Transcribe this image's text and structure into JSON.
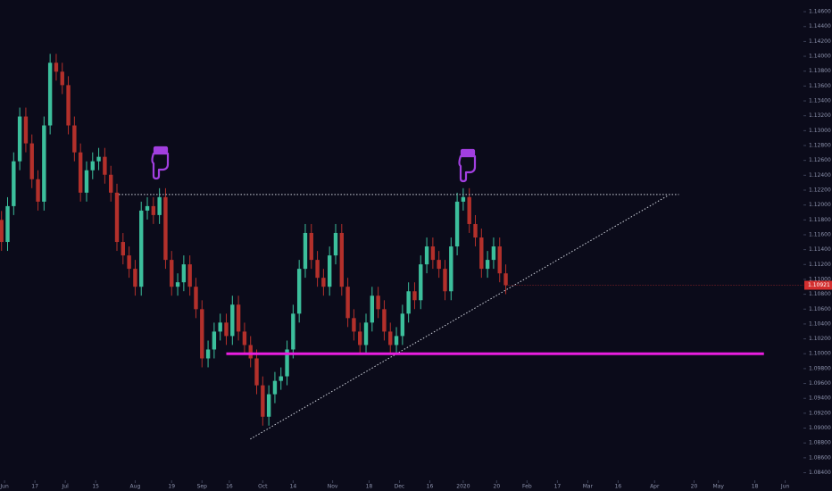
{
  "chart_data": {
    "type": "candlestick",
    "up_color": "#3cbf9c",
    "down_color": "#b3302b",
    "grid": false,
    "xlim": [
      -1.5,
      263
    ],
    "ylim": [
      1.0831,
      1.14757
    ],
    "xticks": [
      {
        "value": 0,
        "label": "Jun"
      },
      {
        "value": 10,
        "label": "17"
      },
      {
        "value": 20,
        "label": "Jul"
      },
      {
        "value": 30,
        "label": "15"
      },
      {
        "value": 43,
        "label": "Aug"
      },
      {
        "value": 55,
        "label": "19"
      },
      {
        "value": 65,
        "label": "Sep"
      },
      {
        "value": 74,
        "label": "16"
      },
      {
        "value": 85,
        "label": "Oct"
      },
      {
        "value": 95,
        "label": "14"
      },
      {
        "value": 108,
        "label": "Nov"
      },
      {
        "value": 120,
        "label": "18"
      },
      {
        "value": 130,
        "label": "Dec"
      },
      {
        "value": 140,
        "label": "16"
      },
      {
        "value": 151,
        "label": "2020"
      },
      {
        "value": 162,
        "label": "20"
      },
      {
        "value": 172,
        "label": "Feb"
      },
      {
        "value": 182,
        "label": "17"
      },
      {
        "value": 192,
        "label": "Mar"
      },
      {
        "value": 202,
        "label": "16"
      },
      {
        "value": 214,
        "label": "Apr"
      },
      {
        "value": 227,
        "label": "20"
      },
      {
        "value": 235,
        "label": "May"
      },
      {
        "value": 247,
        "label": "18"
      },
      {
        "value": 257,
        "label": "Jun"
      }
    ],
    "yticks": [
      {
        "value": 1.146,
        "label": "1.14600"
      },
      {
        "value": 1.144,
        "label": "1.14400"
      },
      {
        "value": 1.142,
        "label": "1.14200"
      },
      {
        "value": 1.14,
        "label": "1.14000"
      },
      {
        "value": 1.138,
        "label": "1.13800"
      },
      {
        "value": 1.136,
        "label": "1.13600"
      },
      {
        "value": 1.134,
        "label": "1.13400"
      },
      {
        "value": 1.132,
        "label": "1.13200"
      },
      {
        "value": 1.13,
        "label": "1.13000"
      },
      {
        "value": 1.128,
        "label": "1.12800"
      },
      {
        "value": 1.126,
        "label": "1.12600"
      },
      {
        "value": 1.124,
        "label": "1.12400"
      },
      {
        "value": 1.122,
        "label": "1.12200"
      },
      {
        "value": 1.12,
        "label": "1.12000"
      },
      {
        "value": 1.118,
        "label": "1.11800"
      },
      {
        "value": 1.116,
        "label": "1.11600"
      },
      {
        "value": 1.114,
        "label": "1.11400"
      },
      {
        "value": 1.112,
        "label": "1.11200"
      },
      {
        "value": 1.11,
        "label": "1.11000"
      },
      {
        "value": 1.108,
        "label": "1.10800"
      },
      {
        "value": 1.106,
        "label": "1.10600"
      },
      {
        "value": 1.104,
        "label": "1.10400"
      },
      {
        "value": 1.102,
        "label": "1.10200"
      },
      {
        "value": 1.1,
        "label": "1.10000"
      },
      {
        "value": 1.098,
        "label": "1.09800"
      },
      {
        "value": 1.096,
        "label": "1.09600"
      },
      {
        "value": 1.094,
        "label": "1.09400"
      },
      {
        "value": 1.092,
        "label": "1.09200"
      },
      {
        "value": 1.09,
        "label": "1.09000"
      },
      {
        "value": 1.088,
        "label": "1.08800"
      },
      {
        "value": 1.086,
        "label": "1.08600"
      },
      {
        "value": 1.084,
        "label": "1.08400"
      }
    ],
    "last_price": {
      "value": 1.10921,
      "label": "1.10921",
      "color": "#d32f2f"
    },
    "x": [
      -1,
      1,
      3,
      5,
      7,
      9,
      11,
      13,
      15,
      17,
      19,
      21,
      23,
      25,
      27,
      29,
      31,
      33,
      35,
      37,
      39,
      41,
      43,
      45,
      47,
      49,
      51,
      53,
      55,
      57,
      59,
      61,
      63,
      65,
      67,
      69,
      71,
      73,
      75,
      77,
      79,
      81,
      83,
      85,
      87,
      89,
      91,
      93,
      95,
      97,
      99,
      101,
      103,
      105,
      107,
      109,
      111,
      113,
      115,
      117,
      119,
      121,
      123,
      125,
      127,
      129,
      131,
      133,
      135,
      137,
      139,
      141,
      143,
      145,
      147,
      149,
      151,
      153,
      155,
      157,
      159,
      161,
      163,
      165
    ],
    "open": [
      1.118,
      1.11503,
      1.11985,
      1.12588,
      1.1319,
      1.12829,
      1.12347,
      1.12045,
      1.1307,
      1.13913,
      1.13793,
      1.13612,
      1.1307,
      1.12708,
      1.12166,
      1.12467,
      1.12588,
      1.12648,
      1.12407,
      1.12166,
      1.11503,
      1.11322,
      1.11142,
      1.10901,
      1.11925,
      1.11985,
      1.11865,
      1.12106,
      1.11262,
      1.10901,
      1.10961,
      1.11202,
      1.10901,
      1.10599,
      1.09937,
      1.10057,
      1.10298,
      1.10419,
      1.10238,
      1.1066,
      1.10298,
      1.10117,
      1.09937,
      1.09575,
      1.09153,
      1.09455,
      1.09635,
      1.09696,
      1.10057,
      1.10539,
      1.11142,
      1.11624,
      1.11262,
      1.11021,
      1.10901,
      1.11322,
      1.11624,
      1.10901,
      1.10479,
      1.10298,
      1.10117,
      1.10419,
      1.1078,
      1.10599,
      1.10298,
      1.10117,
      1.10238,
      1.10539,
      1.1084,
      1.1072,
      1.11202,
      1.11443,
      1.11262,
      1.11142,
      1.1084,
      1.11443,
      1.12045,
      1.12106,
      1.11744,
      1.11563,
      1.11142,
      1.11262,
      1.11443,
      1.11081
    ],
    "high": [
      1.1192,
      1.12105,
      1.12708,
      1.1331,
      1.1331,
      1.12949,
      1.12467,
      1.1319,
      1.14033,
      1.14033,
      1.13913,
      1.13732,
      1.1319,
      1.12828,
      1.12587,
      1.12708,
      1.12768,
      1.12768,
      1.12527,
      1.12286,
      1.11623,
      1.11442,
      1.11262,
      1.12045,
      1.12105,
      1.12105,
      1.12226,
      1.12226,
      1.11382,
      1.11081,
      1.11322,
      1.11322,
      1.11021,
      1.10719,
      1.10177,
      1.10418,
      1.10539,
      1.10539,
      1.1078,
      1.1078,
      1.10418,
      1.10237,
      1.10057,
      1.09695,
      1.09575,
      1.09755,
      1.09816,
      1.10177,
      1.10659,
      1.11262,
      1.11744,
      1.11744,
      1.11382,
      1.11141,
      1.11442,
      1.11744,
      1.11744,
      1.11021,
      1.10599,
      1.10418,
      1.10539,
      1.109,
      1.109,
      1.10719,
      1.10418,
      1.10358,
      1.10659,
      1.1096,
      1.1096,
      1.11322,
      1.11563,
      1.11563,
      1.11382,
      1.11262,
      1.11563,
      1.12165,
      1.12226,
      1.12226,
      1.11864,
      1.11683,
      1.11382,
      1.11563,
      1.11563,
      1.11201
    ],
    "low": [
      1.11383,
      1.11383,
      1.11865,
      1.12468,
      1.12709,
      1.12227,
      1.11925,
      1.11925,
      1.1295,
      1.13673,
      1.13492,
      1.1295,
      1.12588,
      1.12046,
      1.12046,
      1.12347,
      1.12468,
      1.12287,
      1.12046,
      1.11383,
      1.11202,
      1.11022,
      1.10781,
      1.10781,
      1.11805,
      1.11745,
      1.11745,
      1.11142,
      1.10781,
      1.10781,
      1.10841,
      1.10781,
      1.10479,
      1.09817,
      1.09817,
      1.09937,
      1.10178,
      1.10118,
      1.10118,
      1.10178,
      1.09997,
      1.09817,
      1.09455,
      1.09033,
      1.09033,
      1.09335,
      1.09515,
      1.09576,
      1.09937,
      1.10419,
      1.11022,
      1.11142,
      1.10901,
      1.10781,
      1.10781,
      1.11202,
      1.10781,
      1.10359,
      1.10178,
      1.09997,
      1.09997,
      1.10299,
      1.10479,
      1.10178,
      1.09997,
      1.09997,
      1.10118,
      1.10419,
      1.106,
      1.106,
      1.11082,
      1.11142,
      1.11022,
      1.1072,
      1.1072,
      1.11323,
      1.11925,
      1.11624,
      1.11443,
      1.11022,
      1.11022,
      1.11142,
      1.10961,
      1.10801
    ],
    "close": [
      1.11503,
      1.11985,
      1.12588,
      1.1319,
      1.12829,
      1.12347,
      1.12045,
      1.1307,
      1.13913,
      1.13793,
      1.13612,
      1.1307,
      1.12708,
      1.12166,
      1.12467,
      1.12588,
      1.12648,
      1.12407,
      1.12166,
      1.11503,
      1.11322,
      1.11142,
      1.10901,
      1.11925,
      1.11985,
      1.11865,
      1.12106,
      1.11262,
      1.10901,
      1.10961,
      1.11202,
      1.10901,
      1.10599,
      1.09937,
      1.10057,
      1.10298,
      1.10419,
      1.10238,
      1.1066,
      1.10298,
      1.10117,
      1.09937,
      1.09575,
      1.09153,
      1.09455,
      1.09635,
      1.09696,
      1.10057,
      1.10539,
      1.11142,
      1.11624,
      1.11262,
      1.11021,
      1.10901,
      1.11322,
      1.11624,
      1.10901,
      1.10479,
      1.10298,
      1.10117,
      1.10419,
      1.1078,
      1.10599,
      1.10298,
      1.10117,
      1.10238,
      1.10539,
      1.1084,
      1.1072,
      1.11202,
      1.11443,
      1.11262,
      1.11142,
      1.1084,
      1.11443,
      1.12045,
      1.12106,
      1.11744,
      1.11563,
      1.11142,
      1.11262,
      1.11443,
      1.11081,
      1.10921
    ],
    "drawings": [
      {
        "x": [
          37.6,
          222
        ],
        "y": [
          1.12142,
          1.12142
        ],
        "color": "#cfd3dc",
        "style": "dotted",
        "width": 1
      },
      {
        "x": [
          80.9,
          218.5
        ],
        "y": [
          1.08852,
          1.1213
        ],
        "color": "#cfd3dc",
        "style": "dotted",
        "width": 1
      },
      {
        "x": [
          73,
          250
        ],
        "y": [
          1.1,
          1.1
        ],
        "color": "#e91ee0",
        "style": "solid",
        "width": 3
      }
    ]
  }
}
